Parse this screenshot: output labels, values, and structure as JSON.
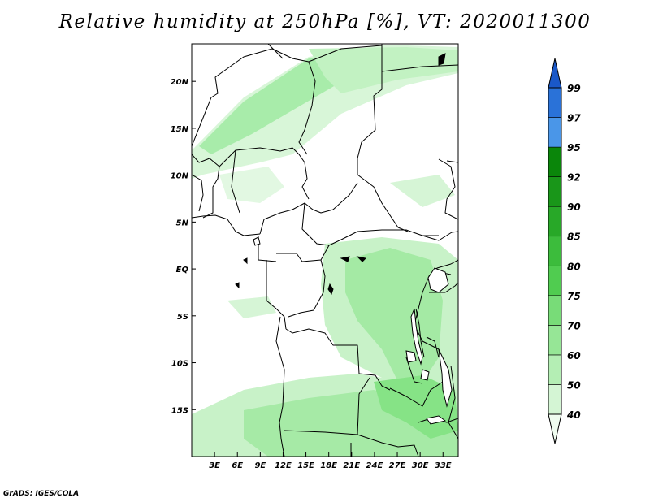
{
  "title": "Relative humidity at 250hPa [%], VT: 2020011300",
  "credit": "GrADS: IGES/COLA",
  "map": {
    "lon_range": [
      0,
      35
    ],
    "lat_range": [
      -20,
      24
    ],
    "lon_ticks": [
      {
        "value": 3,
        "label": "3E"
      },
      {
        "value": 6,
        "label": "6E"
      },
      {
        "value": 9,
        "label": "9E"
      },
      {
        "value": 12,
        "label": "12E"
      },
      {
        "value": 15,
        "label": "15E"
      },
      {
        "value": 18,
        "label": "18E"
      },
      {
        "value": 21,
        "label": "21E"
      },
      {
        "value": 24,
        "label": "24E"
      },
      {
        "value": 27,
        "label": "27E"
      },
      {
        "value": 30,
        "label": "30E"
      },
      {
        "value": 33,
        "label": "33E"
      }
    ],
    "lat_ticks": [
      {
        "value": 20,
        "label": "20N"
      },
      {
        "value": 15,
        "label": "15N"
      },
      {
        "value": 10,
        "label": "10N"
      },
      {
        "value": 5,
        "label": "5N"
      },
      {
        "value": 0,
        "label": "EQ"
      },
      {
        "value": -5,
        "label": "5S"
      },
      {
        "value": -10,
        "label": "10S"
      },
      {
        "value": -15,
        "label": "15S"
      }
    ]
  },
  "colorbar": {
    "levels": [
      "40",
      "50",
      "60",
      "70",
      "75",
      "80",
      "85",
      "90",
      "92",
      "95",
      "97",
      "99"
    ],
    "colors": [
      "#f0fcf0",
      "#d4f5d4",
      "#b4eeb4",
      "#96e696",
      "#78dc78",
      "#50cc50",
      "#3cbc3c",
      "#28a828",
      "#199619",
      "#0a860a",
      "#4a96e8",
      "#2a72d8",
      "#1a58c8"
    ]
  }
}
